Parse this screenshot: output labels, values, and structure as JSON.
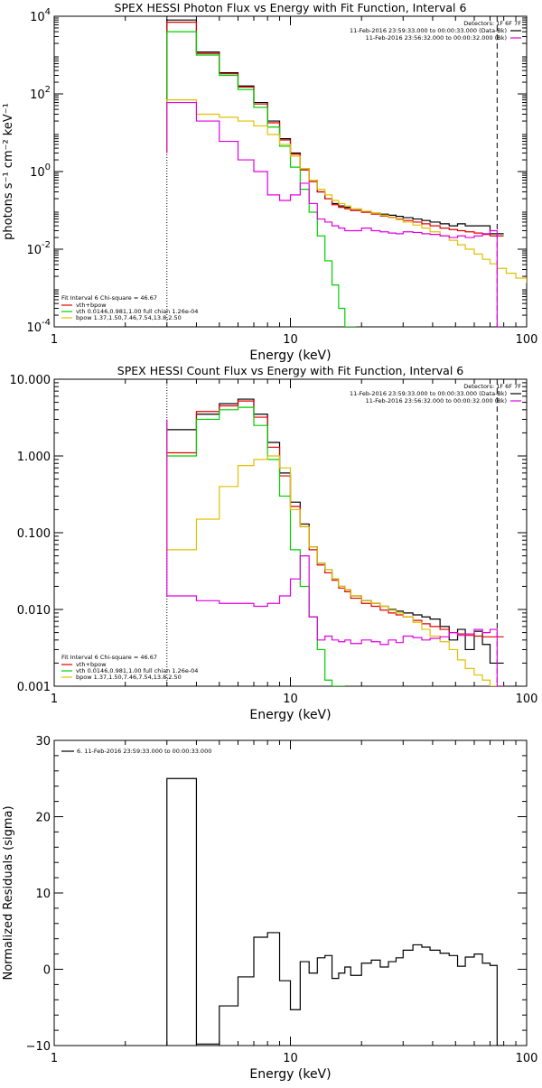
{
  "colors": {
    "background": "#ffffff",
    "axes": "#000000",
    "data": "#000000",
    "total_fit": "#e00000",
    "vth": "#00d000",
    "bpow": "#e0c000",
    "background_model": "#e000e0"
  },
  "chart_data": [
    {
      "type": "line",
      "title": "SPEX HESSI Photon Flux vs Energy with Fit Function, Interval 6",
      "xlabel": "Energy (keV)",
      "ylabel": "photons s⁻¹ cm⁻² keV⁻¹",
      "xscale": "log",
      "yscale": "log",
      "xlim": [
        1,
        100
      ],
      "ylim": [
        0.0001,
        10000
      ],
      "xtick_labels": [
        "1",
        "10",
        "100"
      ],
      "ytick_values": [
        0.0001,
        0.01,
        1,
        100,
        10000
      ],
      "ytick_labels": [
        {
          "base": "10",
          "exp": "-4"
        },
        {
          "base": "10",
          "exp": "-2"
        },
        {
          "base": "10",
          "exp": "0"
        },
        {
          "base": "10",
          "exp": "2"
        },
        {
          "base": "10",
          "exp": "4"
        }
      ],
      "vlines": [
        {
          "x": 3,
          "style": "dotted",
          "color": "#000000"
        },
        {
          "x": 75,
          "style": "dashed",
          "color": "#000000"
        }
      ],
      "legend_top": {
        "position": "top-right",
        "header": "Detectors: 1F 6F 7F",
        "entries": [
          {
            "text": "11-Feb-2016 23:59:33.000 to 00:00:33.000 (Data-Bk)",
            "color": "#000000"
          },
          {
            "text": "11-Feb-2016 23:56:32.000 to 00:00:32.000 (Bk)",
            "color": "#e000e0"
          }
        ]
      },
      "legend_bottom": {
        "position": "bottom-left",
        "header": "Fit Interval 6   Chi-square = 46.67",
        "entries": [
          {
            "text": "vth+bpow",
            "color": "#e00000"
          },
          {
            "text": "vth 0.0146,0.981,1.00  full chian 1.26e-04",
            "color": "#00d000"
          },
          {
            "text": "bpow 1.37,1.50,7.46,7.54,13.8,2.50",
            "color": "#e0c000"
          }
        ]
      },
      "series": [
        {
          "color": "#000000",
          "from": 3,
          "x": [
            3,
            4,
            5,
            6,
            7,
            8,
            9,
            10,
            11,
            12,
            13,
            14,
            15,
            16,
            17,
            18,
            20,
            22,
            24,
            26,
            28,
            30,
            33,
            36,
            39,
            43,
            47,
            51,
            55,
            60,
            65,
            70,
            75
          ],
          "values": [
            8000,
            1200,
            350,
            160,
            60,
            20,
            7,
            3,
            1.2,
            0.6,
            0.3,
            0.2,
            0.15,
            0.13,
            0.12,
            0.1,
            0.09,
            0.085,
            0.08,
            0.075,
            0.07,
            0.065,
            0.06,
            0.055,
            0.05,
            0.045,
            0.04,
            0.045,
            0.04,
            0.04,
            0.04,
            0.025,
            0.025
          ]
        },
        {
          "color": "#e00000",
          "from": 3,
          "x": [
            3,
            4,
            5,
            6,
            7,
            8,
            9,
            10,
            11,
            12,
            13,
            14,
            15,
            16,
            17,
            18,
            20,
            22,
            24,
            26,
            28,
            30,
            33,
            36,
            39,
            43,
            47,
            51,
            55,
            60,
            65,
            70,
            75
          ],
          "values": [
            7000,
            1100,
            330,
            150,
            55,
            18,
            6.5,
            2.8,
            1.1,
            0.55,
            0.3,
            0.2,
            0.14,
            0.12,
            0.11,
            0.1,
            0.09,
            0.08,
            0.072,
            0.066,
            0.06,
            0.055,
            0.05,
            0.045,
            0.04,
            0.035,
            0.032,
            0.03,
            0.028,
            0.026,
            0.024,
            0.022,
            0.022
          ]
        },
        {
          "color": "#00d000",
          "from": 3,
          "x": [
            3,
            4,
            5,
            6,
            7,
            8,
            9,
            10,
            11,
            12,
            13,
            14,
            15,
            16,
            17,
            18
          ],
          "values": [
            4000,
            1000,
            300,
            130,
            45,
            14,
            4.5,
            1.3,
            0.35,
            0.09,
            0.022,
            0.005,
            0.0012,
            0.0003,
            0.0001,
            0.0001
          ]
        },
        {
          "color": "#e0c000",
          "from": 3,
          "x": [
            3,
            4,
            5,
            6,
            7,
            8,
            9,
            10,
            11,
            12,
            13,
            14,
            15,
            16,
            17,
            18,
            20,
            22,
            24,
            26,
            28,
            30,
            33,
            36,
            39,
            43,
            47,
            51,
            55,
            60,
            65,
            70,
            75,
            82,
            90,
            100
          ],
          "values": [
            70,
            30,
            25,
            20,
            15,
            9,
            5,
            2.5,
            1.2,
            0.6,
            0.35,
            0.25,
            0.18,
            0.15,
            0.13,
            0.11,
            0.095,
            0.085,
            0.075,
            0.065,
            0.058,
            0.05,
            0.042,
            0.035,
            0.028,
            0.022,
            0.017,
            0.013,
            0.01,
            0.0075,
            0.0055,
            0.0042,
            0.0032,
            0.0024,
            0.0018,
            0.0014
          ]
        },
        {
          "color": "#e000e0",
          "from": 3,
          "x": [
            3,
            4,
            5,
            6,
            7,
            8,
            9,
            10,
            11,
            12,
            13,
            14,
            15,
            16,
            17,
            18,
            20,
            22,
            24,
            26,
            28,
            30,
            33,
            36,
            39,
            43,
            47,
            51,
            55,
            60,
            65,
            70,
            75
          ],
          "values": [
            60,
            20,
            6,
            2,
            1,
            0.25,
            0.18,
            0.25,
            0.5,
            0.15,
            0.06,
            0.05,
            0.04,
            0.035,
            0.03,
            0.03,
            0.035,
            0.03,
            0.028,
            0.026,
            0.025,
            0.028,
            0.027,
            0.025,
            0.024,
            0.022,
            0.02,
            0.022,
            0.02,
            0.022,
            0.025,
            0.03,
            0.0001
          ]
        }
      ]
    },
    {
      "type": "line",
      "title": "SPEX HESSI Count Flux vs Energy with Fit Function, Interval 6",
      "xlabel": "Energy (keV)",
      "ylabel": "",
      "xscale": "log",
      "yscale": "log",
      "xlim": [
        1,
        100
      ],
      "ylim": [
        0.001,
        10
      ],
      "xtick_labels": [
        "1",
        "10",
        "100"
      ],
      "ytick_values": [
        0.001,
        0.01,
        0.1,
        1,
        10
      ],
      "ytick_labels": [
        {
          "base": "0.001",
          "exp": ""
        },
        {
          "base": "0.010",
          "exp": ""
        },
        {
          "base": "0.100",
          "exp": ""
        },
        {
          "base": "1.000",
          "exp": ""
        },
        {
          "base": "10.000",
          "exp": ""
        }
      ],
      "vlines": [
        {
          "x": 3,
          "style": "dotted",
          "color": "#000000"
        },
        {
          "x": 75,
          "style": "dashed",
          "color": "#000000"
        }
      ],
      "legend_top": {
        "position": "top-right",
        "header": "Detectors: 1F 6F 7F",
        "entries": [
          {
            "text": "11-Feb-2016 23:59:33.000 to 00:00:33.000 (Data-Bk)",
            "color": "#000000"
          },
          {
            "text": "11-Feb-2016 23:56:32.000 to 00:00:32.000 (Bk)",
            "color": "#e000e0"
          }
        ]
      },
      "legend_bottom": {
        "position": "bottom-left",
        "header": "Fit Interval 6   Chi-square = 46.67",
        "entries": [
          {
            "text": "vth+bpow",
            "color": "#e00000"
          },
          {
            "text": "vth 0.0146,0.981,1.00  full chian 1.26e-04",
            "color": "#00d000"
          },
          {
            "text": "bpow 1.37,1.50,7.46,7.54,13.8,2.50",
            "color": "#e0c000"
          }
        ]
      },
      "series": [
        {
          "color": "#000000",
          "from": 3,
          "x": [
            3,
            4,
            5,
            6,
            7,
            8,
            9,
            10,
            11,
            12,
            13,
            14,
            15,
            16,
            17,
            18,
            20,
            22,
            24,
            26,
            28,
            30,
            33,
            36,
            39,
            43,
            47,
            51,
            55,
            60,
            65,
            70,
            75
          ],
          "values": [
            2.2,
            3.5,
            4.8,
            5.5,
            3.5,
            1.5,
            0.6,
            0.25,
            0.13,
            0.065,
            0.04,
            0.033,
            0.025,
            0.02,
            0.018,
            0.015,
            0.013,
            0.012,
            0.011,
            0.01,
            0.0095,
            0.009,
            0.0085,
            0.008,
            0.0075,
            0.006,
            0.004,
            0.0055,
            0.003,
            0.0052,
            0.0035,
            0.002,
            0.002
          ]
        },
        {
          "color": "#e00000",
          "from": 3,
          "x": [
            3,
            4,
            5,
            6,
            7,
            8,
            9,
            10,
            11,
            12,
            13,
            14,
            15,
            16,
            17,
            18,
            20,
            22,
            24,
            26,
            28,
            30,
            33,
            36,
            39,
            43,
            47,
            51,
            55,
            60,
            65,
            70,
            75
          ],
          "values": [
            1.1,
            3.8,
            4.5,
            5.2,
            3.2,
            1.3,
            0.55,
            0.22,
            0.12,
            0.06,
            0.038,
            0.03,
            0.024,
            0.019,
            0.017,
            0.014,
            0.012,
            0.011,
            0.0098,
            0.009,
            0.0085,
            0.008,
            0.0072,
            0.0065,
            0.006,
            0.0055,
            0.005,
            0.0048,
            0.0046,
            0.0045,
            0.0044,
            0.0044,
            0.0044
          ]
        },
        {
          "color": "#00d000",
          "from": 3,
          "x": [
            3,
            4,
            5,
            6,
            7,
            8,
            9,
            10,
            11,
            12,
            13,
            14,
            15,
            16
          ],
          "values": [
            1.0,
            3.0,
            4.0,
            4.3,
            2.5,
            0.9,
            0.3,
            0.06,
            0.02,
            0.008,
            0.003,
            0.0012,
            0.001,
            0.001
          ]
        },
        {
          "color": "#e0c000",
          "from": 3,
          "x": [
            3,
            4,
            5,
            6,
            7,
            8,
            9,
            10,
            11,
            12,
            13,
            14,
            15,
            16,
            17,
            18,
            20,
            22,
            24,
            26,
            28,
            30,
            33,
            36,
            39,
            43,
            47,
            51,
            55,
            60,
            65,
            70,
            75
          ],
          "values": [
            0.06,
            0.15,
            0.4,
            0.75,
            0.9,
            1.0,
            0.7,
            0.2,
            0.12,
            0.065,
            0.04,
            0.033,
            0.025,
            0.02,
            0.018,
            0.015,
            0.013,
            0.012,
            0.011,
            0.0098,
            0.009,
            0.008,
            0.0068,
            0.0055,
            0.0045,
            0.0038,
            0.003,
            0.0022,
            0.0017,
            0.0014,
            0.0012,
            0.001,
            0.001
          ]
        },
        {
          "color": "#e000e0",
          "from": 3,
          "x": [
            3,
            4,
            5,
            6,
            7,
            8,
            9,
            10,
            11,
            12,
            13,
            14,
            15,
            16,
            17,
            18,
            20,
            22,
            24,
            26,
            28,
            30,
            33,
            36,
            39,
            43,
            47,
            51,
            55,
            60,
            65,
            70,
            75
          ],
          "values": [
            0.015,
            0.013,
            0.012,
            0.012,
            0.011,
            0.012,
            0.015,
            0.025,
            0.05,
            0.008,
            0.004,
            0.0045,
            0.004,
            0.0038,
            0.004,
            0.0036,
            0.004,
            0.0038,
            0.0035,
            0.004,
            0.0037,
            0.0045,
            0.0043,
            0.004,
            0.0042,
            0.0044,
            0.005,
            0.0046,
            0.0048,
            0.0055,
            0.005,
            0.0055,
            0.001
          ]
        }
      ]
    },
    {
      "type": "line",
      "title": "",
      "xlabel": "Energy (keV)",
      "ylabel": "Normalized Residuals (sigma)",
      "xscale": "log",
      "yscale": "linear",
      "xlim": [
        1,
        100
      ],
      "ylim": [
        -10,
        30
      ],
      "xtick_labels": [
        "1",
        "10",
        "100"
      ],
      "ytick_values": [
        -10,
        0,
        10,
        20,
        30
      ],
      "ytick_labels": [
        {
          "base": "−10",
          "exp": ""
        },
        {
          "base": "0",
          "exp": ""
        },
        {
          "base": "10",
          "exp": ""
        },
        {
          "base": "20",
          "exp": ""
        },
        {
          "base": "30",
          "exp": ""
        }
      ],
      "vlines": [],
      "legend_top": {
        "position": "top-left",
        "header": "",
        "entries": [
          {
            "text": "6. 11-Feb-2016 23:59:33.000 to 00:00:33.000",
            "color": "#000000"
          }
        ]
      },
      "legend_bottom": null,
      "series": [
        {
          "color": "#000000",
          "from": -10,
          "x": [
            3,
            4,
            5,
            6,
            7,
            8,
            9,
            10,
            11,
            12,
            13,
            14,
            15,
            16,
            17,
            18,
            20,
            22,
            24,
            26,
            28,
            30,
            33,
            36,
            39,
            43,
            47,
            51,
            55,
            60,
            65,
            70,
            75
          ],
          "values": [
            25,
            -9.8,
            -4.8,
            -1,
            4.2,
            4.8,
            -1.5,
            -5.3,
            1,
            -0.5,
            1.5,
            1.8,
            -1.2,
            -0.5,
            0.3,
            -0.8,
            0.8,
            1.2,
            0.3,
            1,
            1.5,
            2.5,
            3.2,
            2.9,
            2.5,
            2.1,
            1.8,
            0.4,
            1.6,
            2,
            0.8,
            0.5,
            -10
          ]
        }
      ]
    }
  ]
}
